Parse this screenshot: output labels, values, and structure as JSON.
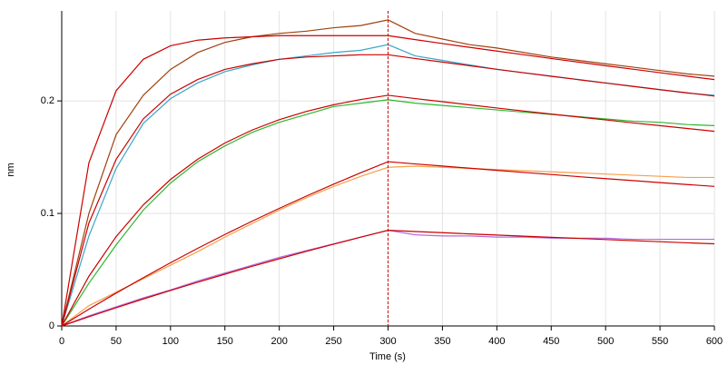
{
  "chart_data": {
    "type": "line",
    "xlabel": "Time (s)",
    "ylabel": "nm",
    "x": [
      0,
      25,
      50,
      75,
      100,
      125,
      150,
      175,
      200,
      225,
      250,
      275,
      300,
      325,
      350,
      375,
      400,
      425,
      450,
      475,
      500,
      525,
      550,
      575,
      600
    ],
    "series": [
      {
        "color": "#a0410d",
        "values": [
          0,
          0.1,
          0.17,
          0.205,
          0.228,
          0.243,
          0.252,
          0.257,
          0.26,
          0.262,
          0.265,
          0.267,
          0.272,
          0.26,
          0.255,
          0.25,
          0.247,
          0.243,
          0.239,
          0.236,
          0.233,
          0.23,
          0.227,
          0.224,
          0.222
        ]
      },
      {
        "color": "#3aa6c9",
        "values": [
          0,
          0.08,
          0.14,
          0.18,
          0.202,
          0.216,
          0.226,
          0.232,
          0.237,
          0.24,
          0.243,
          0.245,
          0.25,
          0.24,
          0.236,
          0.232,
          0.228,
          0.225,
          0.222,
          0.219,
          0.216,
          0.213,
          0.21,
          0.207,
          0.205
        ]
      },
      {
        "color": "#2db82d",
        "values": [
          0,
          0.038,
          0.072,
          0.103,
          0.127,
          0.146,
          0.16,
          0.172,
          0.181,
          0.188,
          0.195,
          0.198,
          0.201,
          0.198,
          0.196,
          0.194,
          0.192,
          0.19,
          0.188,
          0.186,
          0.184,
          0.182,
          0.181,
          0.179,
          0.178
        ]
      },
      {
        "color": "#f5a04a",
        "values": [
          0,
          0.018,
          0.03,
          0.042,
          0.054,
          0.066,
          0.079,
          0.091,
          0.103,
          0.114,
          0.124,
          0.133,
          0.141,
          0.142,
          0.141,
          0.14,
          0.139,
          0.138,
          0.137,
          0.136,
          0.135,
          0.134,
          0.133,
          0.132,
          0.132
        ]
      },
      {
        "color": "#b36be0",
        "values": [
          0,
          0.009,
          0.017,
          0.025,
          0.032,
          0.04,
          0.047,
          0.054,
          0.061,
          0.067,
          0.073,
          0.079,
          0.085,
          0.081,
          0.08,
          0.08,
          0.079,
          0.079,
          0.078,
          0.078,
          0.078,
          0.077,
          0.077,
          0.077,
          0.077
        ]
      },
      {
        "color": "#cc0000",
        "values": [
          0,
          0.145,
          0.209,
          0.237,
          0.249,
          0.254,
          0.256,
          0.257,
          0.258,
          0.258,
          0.258,
          0.258,
          0.258,
          0.2545,
          0.251,
          0.2476,
          0.2443,
          0.241,
          0.2377,
          0.2345,
          0.2313,
          0.2282,
          0.2251,
          0.222,
          0.219
        ]
      },
      {
        "color": "#cc0000",
        "values": [
          0,
          0.0915,
          0.148,
          0.184,
          0.206,
          0.219,
          0.228,
          0.233,
          0.237,
          0.239,
          0.24,
          0.241,
          0.241,
          0.2377,
          0.2345,
          0.2313,
          0.2281,
          0.225,
          0.2219,
          0.2189,
          0.2159,
          0.2129,
          0.21,
          0.2072,
          0.2043
        ]
      },
      {
        "color": "#cc0000",
        "values": [
          0,
          0.0442,
          0.0794,
          0.1076,
          0.1302,
          0.1482,
          0.1626,
          0.1741,
          0.1833,
          0.1907,
          0.1966,
          0.2013,
          0.205,
          0.2021,
          0.1993,
          0.1965,
          0.1937,
          0.191,
          0.1883,
          0.1857,
          0.1831,
          0.1805,
          0.178,
          0.1755,
          0.173
        ]
      },
      {
        "color": "#cc0000",
        "values": [
          0,
          0.0149,
          0.0292,
          0.0429,
          0.0562,
          0.069,
          0.0813,
          0.0931,
          0.1045,
          0.1155,
          0.126,
          0.1362,
          0.146,
          0.144,
          0.1421,
          0.1402,
          0.1383,
          0.1364,
          0.1346,
          0.1327,
          0.1309,
          0.1292,
          0.1274,
          0.1257,
          0.124
        ]
      },
      {
        "color": "#cc0000",
        "values": [
          0,
          0.0082,
          0.0162,
          0.024,
          0.0315,
          0.0389,
          0.046,
          0.053,
          0.0597,
          0.0663,
          0.0727,
          0.0789,
          0.085,
          0.0839,
          0.0829,
          0.0818,
          0.0808,
          0.0798,
          0.0788,
          0.0778,
          0.0768,
          0.0758,
          0.0749,
          0.0739,
          0.073
        ]
      }
    ],
    "xlim": [
      0,
      600
    ],
    "xticks": [
      0,
      50,
      100,
      150,
      200,
      250,
      300,
      350,
      400,
      450,
      500,
      550,
      600
    ],
    "ylim": [
      0,
      0.28
    ],
    "yticks": [
      0,
      0.1,
      0.2
    ],
    "vline": 300,
    "grid": true
  }
}
